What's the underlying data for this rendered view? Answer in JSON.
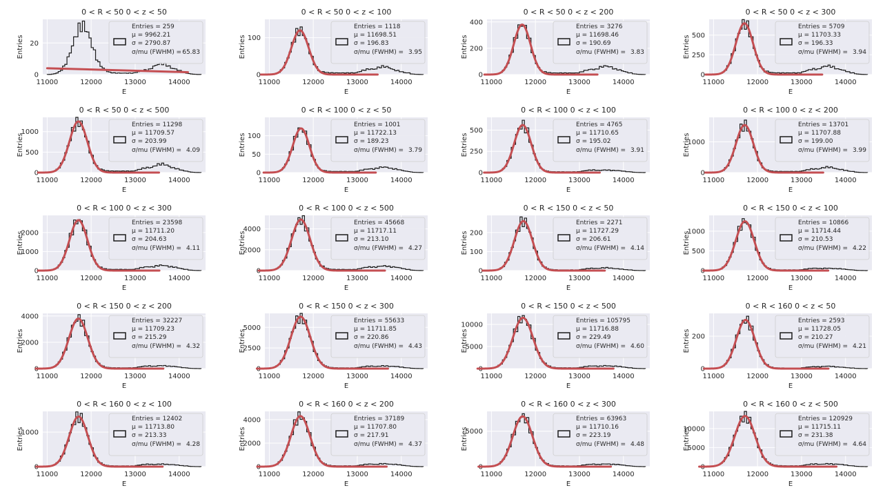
{
  "figure": {
    "xlabel": "E",
    "ylabel": "Entries",
    "colors": {
      "bg": "#eaeaf2",
      "grid": "#ffffff",
      "hist": "#1a1a1a",
      "fit": "#c44e52"
    }
  },
  "chart_data": [
    {
      "type": "histogram-fit",
      "title": "0 < R < 50 0 < z < 50",
      "xlim": [
        10900,
        14600
      ],
      "xticks": [
        11000,
        12000,
        13000,
        14000
      ],
      "ylim": [
        0,
        35
      ],
      "yticks": [
        0,
        20
      ],
      "peak_height": 31,
      "mu_fit": 11800,
      "sigma_fit": 220,
      "tail": [
        [
          13300,
          3
        ],
        [
          13600,
          7
        ],
        [
          13800,
          4
        ]
      ],
      "fit_line": [
        [
          11000,
          4
        ],
        [
          14200,
          1.5
        ]
      ],
      "stats": {
        "entries": "Entries = 259",
        "mu": "μ = 9962.21",
        "sigma": "σ = 2790.87",
        "res_label": "σ/mu (FWHM)  =",
        "res_value": "65.83"
      }
    },
    {
      "type": "histogram-fit",
      "title": "0 < R < 50 0 < z < 100",
      "xlim": [
        10900,
        14600
      ],
      "xticks": [
        11000,
        12000,
        13000,
        14000
      ],
      "ylim": [
        0,
        150
      ],
      "yticks": [
        0,
        100
      ],
      "peak_height": 120,
      "mu_fit": 11698.51,
      "sigma_fit": 196.83,
      "tail": [
        [
          13300,
          15
        ],
        [
          13600,
          22
        ],
        [
          13800,
          12
        ]
      ],
      "stats": {
        "entries": "Entries = 1118",
        "mu": "μ = 11698.51",
        "sigma": "σ = 196.83",
        "res_label": "σ/mu (FWHM)  =",
        "res_value": "3.95"
      }
    },
    {
      "type": "histogram-fit",
      "title": "0 < R < 50 0 < z < 200",
      "xlim": [
        10900,
        14600
      ],
      "xticks": [
        11000,
        12000,
        13000,
        14000
      ],
      "ylim": [
        0,
        420
      ],
      "yticks": [
        0,
        200,
        400
      ],
      "peak_height": 380,
      "mu_fit": 11698.46,
      "sigma_fit": 190.69,
      "tail": [
        [
          13300,
          40
        ],
        [
          13600,
          65
        ],
        [
          13800,
          40
        ]
      ],
      "stats": {
        "entries": "Entries = 3276",
        "mu": "μ = 11698.46",
        "sigma": "σ = 190.69",
        "res_label": "σ/mu (FWHM)  =",
        "res_value": "3.83"
      }
    },
    {
      "type": "histogram-fit",
      "title": "0 < R < 50 0 < z < 300",
      "xlim": [
        10900,
        14600
      ],
      "xticks": [
        11000,
        12000,
        13000,
        14000
      ],
      "ylim": [
        0,
        700
      ],
      "yticks": [
        0,
        250,
        500
      ],
      "peak_height": 650,
      "mu_fit": 11703.33,
      "sigma_fit": 196.33,
      "tail": [
        [
          13300,
          70
        ],
        [
          13600,
          110
        ],
        [
          13800,
          70
        ]
      ],
      "stats": {
        "entries": "Entries = 5709",
        "mu": "μ = 11703.33",
        "sigma": "σ = 196.33",
        "res_label": "σ/mu (FWHM)  =",
        "res_value": "3.94"
      }
    },
    {
      "type": "histogram-fit",
      "title": "0 < R < 50 0 < z < 500",
      "xlim": [
        10900,
        14600
      ],
      "xticks": [
        11000,
        12000,
        13000,
        14000
      ],
      "ylim": [
        0,
        1350
      ],
      "yticks": [
        0,
        500,
        1000
      ],
      "peak_height": 1250,
      "mu_fit": 11709.57,
      "sigma_fit": 203.99,
      "tail": [
        [
          13300,
          120
        ],
        [
          13600,
          210
        ],
        [
          13800,
          120
        ]
      ],
      "stats": {
        "entries": "Entries = 11298",
        "mu": "μ = 11709.57",
        "sigma": "σ = 203.99",
        "res_label": "σ/mu (FWHM)  =",
        "res_value": "4.09"
      }
    },
    {
      "type": "histogram-fit",
      "title": "0 < R < 100 0 < z < 50",
      "xlim": [
        10900,
        14600
      ],
      "xticks": [
        11000,
        12000,
        13000,
        14000
      ],
      "ylim": [
        0,
        150
      ],
      "yticks": [
        0,
        50,
        100
      ],
      "peak_height": 120,
      "mu_fit": 11722.13,
      "sigma_fit": 189.23,
      "tail": [
        [
          13300,
          10
        ],
        [
          13600,
          15
        ],
        [
          13800,
          10
        ]
      ],
      "stats": {
        "entries": "Entries = 1001",
        "mu": "μ = 11722.13",
        "sigma": "σ = 189.23",
        "res_label": "σ/mu (FWHM)  =",
        "res_value": "3.79"
      }
    },
    {
      "type": "histogram-fit",
      "title": "0 < R < 100 0 < z < 100",
      "xlim": [
        10900,
        14600
      ],
      "xticks": [
        11000,
        12000,
        13000,
        14000
      ],
      "ylim": [
        0,
        650
      ],
      "yticks": [
        0,
        250,
        500
      ],
      "peak_height": 560,
      "mu_fit": 11710.65,
      "sigma_fit": 195.02,
      "tail": [
        [
          13300,
          30
        ],
        [
          13600,
          30
        ],
        [
          13800,
          25
        ]
      ],
      "stats": {
        "entries": "Entries = 4765",
        "mu": "μ = 11710.65",
        "sigma": "σ = 195.02",
        "res_label": "σ/mu (FWHM)  =",
        "res_value": "3.91"
      }
    },
    {
      "type": "histogram-fit",
      "title": "0 < R < 100 0 < z < 200",
      "xlim": [
        10900,
        14600
      ],
      "xticks": [
        11000,
        12000,
        13000,
        14000
      ],
      "ylim": [
        0,
        1800
      ],
      "yticks": [
        0,
        1000
      ],
      "peak_height": 1550,
      "mu_fit": 11707.88,
      "sigma_fit": 199.0,
      "tail": [
        [
          13300,
          120
        ],
        [
          13600,
          180
        ],
        [
          13800,
          110
        ]
      ],
      "stats": {
        "entries": "Entries = 13701",
        "mu": "μ = 11707.88",
        "sigma": "σ = 199.00",
        "res_label": "σ/mu (FWHM)  =",
        "res_value": "3.99"
      }
    },
    {
      "type": "histogram-fit",
      "title": "0 < R < 100 0 < z < 300",
      "xlim": [
        10900,
        14600
      ],
      "xticks": [
        11000,
        12000,
        13000,
        14000
      ],
      "ylim": [
        0,
        2900
      ],
      "yticks": [
        0,
        1000,
        2000
      ],
      "peak_height": 2650,
      "mu_fit": 11711.2,
      "sigma_fit": 204.63,
      "tail": [
        [
          13300,
          200
        ],
        [
          13600,
          280
        ],
        [
          13800,
          200
        ]
      ],
      "stats": {
        "entries": "Entries = 23598",
        "mu": "μ = 11711.20",
        "sigma": "σ = 204.63",
        "res_label": "σ/mu (FWHM)  =",
        "res_value": "4.11"
      }
    },
    {
      "type": "histogram-fit",
      "title": "0 < R < 100 0 < z < 500",
      "xlim": [
        10900,
        14600
      ],
      "xticks": [
        11000,
        12000,
        13000,
        14000
      ],
      "ylim": [
        0,
        5300
      ],
      "yticks": [
        0,
        2000,
        4000
      ],
      "peak_height": 4900,
      "mu_fit": 11717.11,
      "sigma_fit": 213.1,
      "tail": [
        [
          13300,
          350
        ],
        [
          13600,
          450
        ],
        [
          13800,
          350
        ]
      ],
      "stats": {
        "entries": "Entries = 45668",
        "mu": "μ = 11717.11",
        "sigma": "σ = 213.10",
        "res_label": "σ/mu (FWHM)  =",
        "res_value": "4.27"
      }
    },
    {
      "type": "histogram-fit",
      "title": "0 < R < 150 0 < z < 50",
      "xlim": [
        10900,
        14600
      ],
      "xticks": [
        11000,
        12000,
        13000,
        14000
      ],
      "ylim": [
        0,
        290
      ],
      "yticks": [
        0,
        100,
        200
      ],
      "peak_height": 260,
      "mu_fit": 11727.29,
      "sigma_fit": 206.61,
      "tail": [
        [
          13300,
          12
        ],
        [
          13600,
          15
        ],
        [
          13800,
          10
        ]
      ],
      "stats": {
        "entries": "Entries = 2271",
        "mu": "μ = 11727.29",
        "sigma": "σ = 206.61",
        "res_label": "σ/mu (FWHM)  =",
        "res_value": "4.14"
      }
    },
    {
      "type": "histogram-fit",
      "title": "0 < R < 150 0 < z < 100",
      "xlim": [
        10900,
        14600
      ],
      "xticks": [
        11000,
        12000,
        13000,
        14000
      ],
      "ylim": [
        0,
        1400
      ],
      "yticks": [
        0,
        500,
        1000
      ],
      "peak_height": 1250,
      "mu_fit": 11714.44,
      "sigma_fit": 210.53,
      "tail": [
        [
          13300,
          60
        ],
        [
          13600,
          60
        ],
        [
          13800,
          50
        ]
      ],
      "stats": {
        "entries": "Entries = 10866",
        "mu": "μ = 11714.44",
        "sigma": "σ = 210.53",
        "res_label": "σ/mu (FWHM)  =",
        "res_value": "4.22"
      }
    },
    {
      "type": "histogram-fit",
      "title": "0 < R < 150 0 < z < 200",
      "xlim": [
        10900,
        14600
      ],
      "xticks": [
        11000,
        12000,
        13000,
        14000
      ],
      "ylim": [
        0,
        4200
      ],
      "yticks": [
        0,
        2000,
        4000
      ],
      "peak_height": 3800,
      "mu_fit": 11709.23,
      "sigma_fit": 215.29,
      "tail": [
        [
          13300,
          200
        ],
        [
          13600,
          230
        ],
        [
          13800,
          180
        ]
      ],
      "stats": {
        "entries": "Entries = 32227",
        "mu": "μ = 11709.23",
        "sigma": "σ = 215.29",
        "res_label": "σ/mu (FWHM)  =",
        "res_value": "4.32"
      }
    },
    {
      "type": "histogram-fit",
      "title": "0 < R < 150 0 < z < 300",
      "xlim": [
        10900,
        14600
      ],
      "xticks": [
        11000,
        12000,
        13000,
        14000
      ],
      "ylim": [
        0,
        6700
      ],
      "yticks": [
        0,
        2500,
        5000
      ],
      "peak_height": 6300,
      "mu_fit": 11711.85,
      "sigma_fit": 220.86,
      "tail": [
        [
          13300,
          300
        ],
        [
          13600,
          330
        ],
        [
          13800,
          280
        ]
      ],
      "stats": {
        "entries": "Entries = 55633",
        "mu": "μ = 11711.85",
        "sigma": "σ = 220.86",
        "res_label": "σ/mu (FWHM)  =",
        "res_value": "4.43"
      }
    },
    {
      "type": "histogram-fit",
      "title": "0 < R < 150 0 < z < 500",
      "xlim": [
        10900,
        14600
      ],
      "xticks": [
        11000,
        12000,
        13000,
        14000
      ],
      "ylim": [
        0,
        12500
      ],
      "yticks": [
        0,
        5000,
        10000
      ],
      "peak_height": 11500,
      "mu_fit": 11716.88,
      "sigma_fit": 229.49,
      "tail": [
        [
          13300,
          600
        ],
        [
          13600,
          650
        ],
        [
          13800,
          550
        ]
      ],
      "stats": {
        "entries": "Entries = 105795",
        "mu": "μ = 11716.88",
        "sigma": "σ = 229.49",
        "res_label": "σ/mu (FWHM)  =",
        "res_value": "4.60"
      }
    },
    {
      "type": "histogram-fit",
      "title": "0 < R < 160 0 < z < 50",
      "xlim": [
        10900,
        14600
      ],
      "xticks": [
        11000,
        12000,
        13000,
        14000
      ],
      "ylim": [
        0,
        340
      ],
      "yticks": [
        0,
        200
      ],
      "peak_height": 300,
      "mu_fit": 11728.05,
      "sigma_fit": 210.27,
      "tail": [
        [
          13300,
          12
        ],
        [
          13600,
          15
        ],
        [
          13800,
          10
        ]
      ],
      "stats": {
        "entries": "Entries = 2593",
        "mu": "μ = 11728.05",
        "sigma": "σ = 210.27",
        "res_label": "σ/mu (FWHM)  =",
        "res_value": "4.21"
      }
    },
    {
      "type": "histogram-fit",
      "title": "0 < R < 160 0 < z < 100",
      "xlim": [
        10900,
        14600
      ],
      "xticks": [
        11000,
        12000,
        13000,
        14000
      ],
      "ylim": [
        0,
        1600
      ],
      "yticks": [
        0,
        1000
      ],
      "peak_height": 1450,
      "mu_fit": 11713.8,
      "sigma_fit": 213.33,
      "tail": [
        [
          13300,
          70
        ],
        [
          13600,
          75
        ],
        [
          13800,
          60
        ]
      ],
      "stats": {
        "entries": "Entries = 12402",
        "mu": "μ = 11713.80",
        "sigma": "σ = 213.33",
        "res_label": "σ/mu (FWHM)  =",
        "res_value": "4.28"
      }
    },
    {
      "type": "histogram-fit",
      "title": "0 < R < 160 0 < z < 200",
      "xlim": [
        10900,
        14600
      ],
      "xticks": [
        11000,
        12000,
        13000,
        14000
      ],
      "ylim": [
        0,
        4700
      ],
      "yticks": [
        0,
        2000,
        4000
      ],
      "peak_height": 4300,
      "mu_fit": 11707.8,
      "sigma_fit": 217.91,
      "tail": [
        [
          13300,
          220
        ],
        [
          13600,
          250
        ],
        [
          13800,
          200
        ]
      ],
      "stats": {
        "entries": "Entries = 37189",
        "mu": "μ = 11707.80",
        "sigma": "σ = 217.91",
        "res_label": "σ/mu (FWHM)  =",
        "res_value": "4.37"
      }
    },
    {
      "type": "histogram-fit",
      "title": "0 < R < 160 0 < z < 300",
      "xlim": [
        10900,
        14600
      ],
      "xticks": [
        11000,
        12000,
        13000,
        14000
      ],
      "ylim": [
        0,
        7800
      ],
      "yticks": [
        0,
        5000
      ],
      "peak_height": 7100,
      "mu_fit": 11710.16,
      "sigma_fit": 223.19,
      "tail": [
        [
          13300,
          350
        ],
        [
          13600,
          380
        ],
        [
          13800,
          320
        ]
      ],
      "stats": {
        "entries": "Entries = 63963",
        "mu": "μ = 11710.16",
        "sigma": "σ = 223.19",
        "res_label": "σ/mu (FWHM)  =",
        "res_value": "4.48"
      }
    },
    {
      "type": "histogram-fit",
      "title": "0 < R < 160 0 < z < 500",
      "xlim": [
        10900,
        14600
      ],
      "xticks": [
        11000,
        12000,
        13000,
        14000
      ],
      "ylim": [
        0,
        14500
      ],
      "yticks": [
        0,
        5000,
        10000
      ],
      "peak_height": 13300,
      "mu_fit": 11715.11,
      "sigma_fit": 231.38,
      "tail": [
        [
          13300,
          700
        ],
        [
          13600,
          750
        ],
        [
          13800,
          650
        ]
      ],
      "stats": {
        "entries": "Entries = 120929",
        "mu": "μ = 11715.11",
        "sigma": "σ = 231.38",
        "res_label": "σ/mu (FWHM)  =",
        "res_value": "4.64"
      }
    }
  ]
}
